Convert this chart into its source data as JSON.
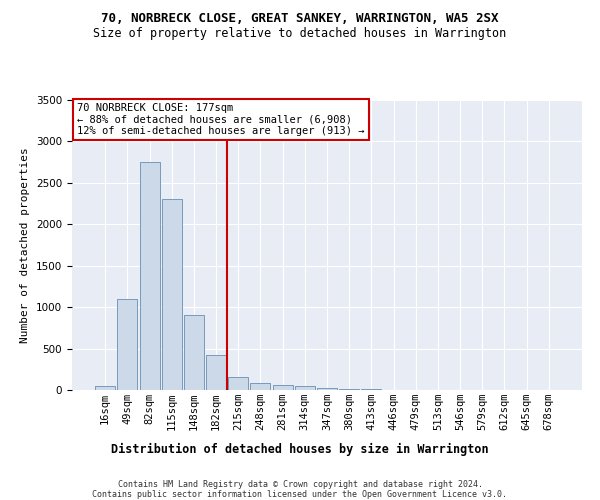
{
  "title1": "70, NORBRECK CLOSE, GREAT SANKEY, WARRINGTON, WA5 2SX",
  "title2": "Size of property relative to detached houses in Warrington",
  "xlabel": "Distribution of detached houses by size in Warrington",
  "ylabel": "Number of detached properties",
  "categories": [
    "16sqm",
    "49sqm",
    "82sqm",
    "115sqm",
    "148sqm",
    "182sqm",
    "215sqm",
    "248sqm",
    "281sqm",
    "314sqm",
    "347sqm",
    "380sqm",
    "413sqm",
    "446sqm",
    "479sqm",
    "513sqm",
    "546sqm",
    "579sqm",
    "612sqm",
    "645sqm",
    "678sqm"
  ],
  "values": [
    50,
    1100,
    2750,
    2300,
    900,
    420,
    160,
    90,
    55,
    45,
    25,
    12,
    8,
    4,
    2,
    1,
    1,
    0,
    0,
    0,
    0
  ],
  "bar_color": "#ccd9e8",
  "bar_edge_color": "#7799bb",
  "vline_color": "#cc0000",
  "vline_x": 5.5,
  "annotation_text": "70 NORBRECK CLOSE: 177sqm\n← 88% of detached houses are smaller (6,908)\n12% of semi-detached houses are larger (913) →",
  "annotation_box_color": "white",
  "annotation_box_edge": "#cc0000",
  "ylim": [
    0,
    3500
  ],
  "yticks": [
    0,
    500,
    1000,
    1500,
    2000,
    2500,
    3000,
    3500
  ],
  "footer1": "Contains HM Land Registry data © Crown copyright and database right 2024.",
  "footer2": "Contains public sector information licensed under the Open Government Licence v3.0.",
  "plot_bg_color": "#e8edf5",
  "title1_fontsize": 9,
  "title2_fontsize": 8.5,
  "xlabel_fontsize": 8.5,
  "ylabel_fontsize": 8,
  "tick_fontsize": 7.5,
  "footer_fontsize": 6,
  "annotation_fontsize": 7.5
}
